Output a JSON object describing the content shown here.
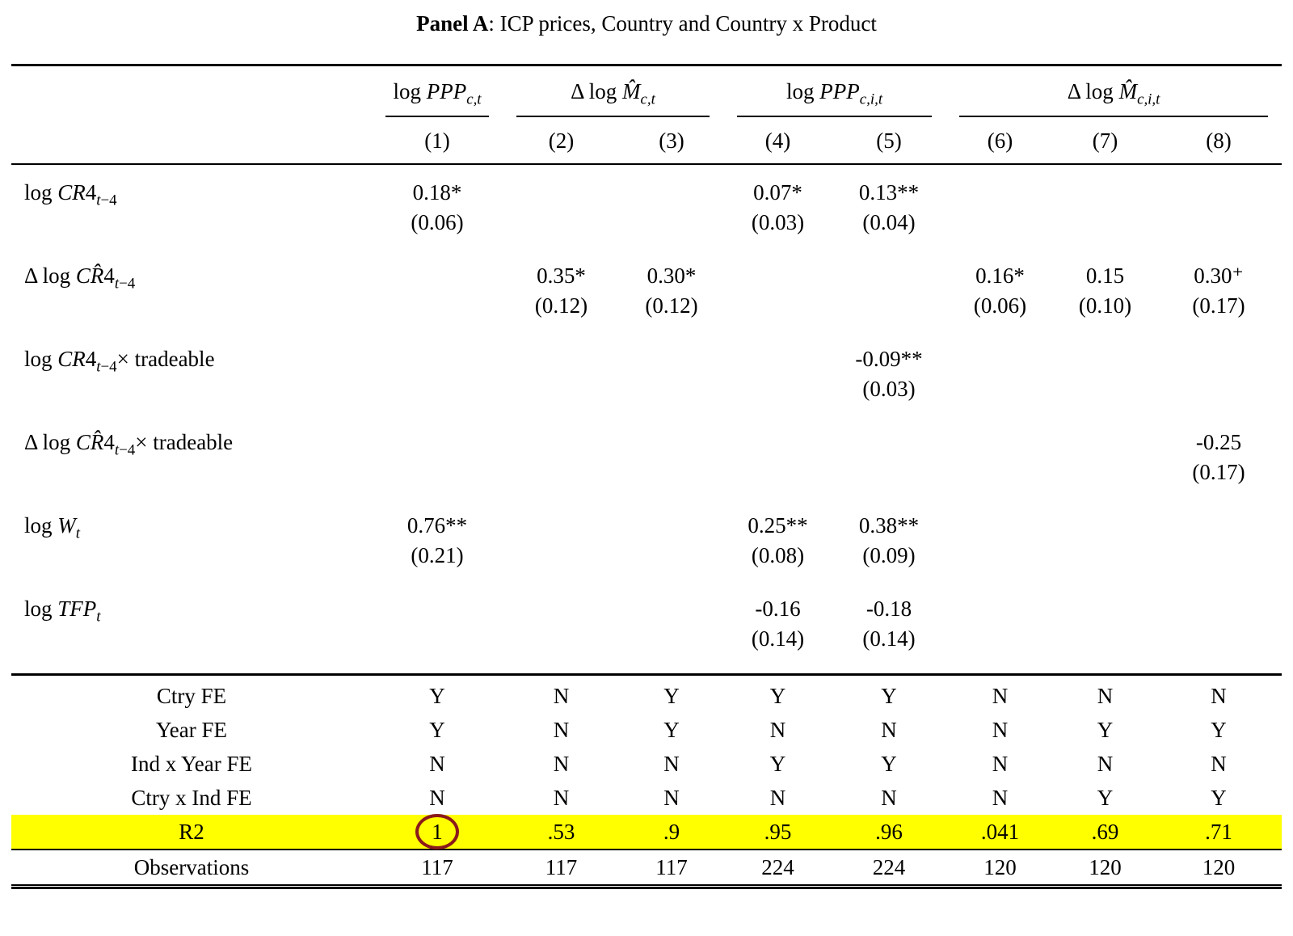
{
  "colors": {
    "r2_highlight": "#ffff00",
    "circle": "#8b1a1a"
  },
  "title": {
    "prefix": "Panel A",
    "suffix": ": ICP prices, Country and Country x Product"
  },
  "table": {
    "col_groups": [
      {
        "label_html": "log <i>PPP</i><sub><i>c,t</i></sub>",
        "span": 1
      },
      {
        "label_html": "Δ log <i>M̂</i><sub><i>c,t</i></sub>",
        "span": 2
      },
      {
        "label_html": "log <i>PPP</i><sub><i>c,i,t</i></sub>",
        "span": 2
      },
      {
        "label_html": "Δ log <i>M̂</i><sub><i>c,i,t</i></sub>",
        "span": 3
      }
    ],
    "col_numbers": [
      "(1)",
      "(2)",
      "(3)",
      "(4)",
      "(5)",
      "(6)",
      "(7)",
      "(8)"
    ],
    "coef_rows": [
      {
        "label_html": "log <i>CR</i>4<sub><i>t</i>−4</sub>",
        "cells": [
          {
            "coef": "0.18*",
            "se": "(0.06)"
          },
          null,
          null,
          {
            "coef": "0.07*",
            "se": "(0.03)"
          },
          {
            "coef": "0.13**",
            "se": "(0.04)"
          },
          null,
          null,
          null
        ]
      },
      {
        "label_html": "Δ log <i>CR̂</i>4<sub><i>t</i>−4</sub>",
        "cells": [
          null,
          {
            "coef": "0.35*",
            "se": "(0.12)"
          },
          {
            "coef": "0.30*",
            "se": "(0.12)"
          },
          null,
          null,
          {
            "coef": "0.16*",
            "se": "(0.06)"
          },
          {
            "coef": "0.15",
            "se": "(0.10)"
          },
          {
            "coef": "0.30⁺",
            "se": "(0.17)"
          }
        ]
      },
      {
        "label_html": "log <i>CR</i>4<sub><i>t</i>−4</sub>× tradeable",
        "cells": [
          null,
          null,
          null,
          null,
          {
            "coef": "-0.09**",
            "se": "(0.03)"
          },
          null,
          null,
          null
        ]
      },
      {
        "label_html": "Δ log <i>CR̂</i>4<sub><i>t</i>−4</sub>× tradeable",
        "cells": [
          null,
          null,
          null,
          null,
          null,
          null,
          null,
          {
            "coef": "-0.25",
            "se": "(0.17)"
          }
        ]
      },
      {
        "label_html": "log <i>W</i><sub><i>t</i></sub>",
        "cells": [
          {
            "coef": "0.76**",
            "se": "(0.21)"
          },
          null,
          null,
          {
            "coef": "0.25**",
            "se": "(0.08)"
          },
          {
            "coef": "0.38**",
            "se": "(0.09)"
          },
          null,
          null,
          null
        ]
      },
      {
        "label_html": "log <i>TFP</i><sub><i>t</i></sub>",
        "cells": [
          null,
          null,
          null,
          {
            "coef": "-0.16",
            "se": "(0.14)"
          },
          {
            "coef": "-0.18",
            "se": "(0.14)"
          },
          null,
          null,
          null
        ]
      }
    ],
    "fe_rows": [
      {
        "label": "Ctry FE",
        "values": [
          "Y",
          "N",
          "Y",
          "Y",
          "Y",
          "N",
          "N",
          "N"
        ]
      },
      {
        "label": "Year FE",
        "values": [
          "Y",
          "N",
          "Y",
          "N",
          "N",
          "N",
          "Y",
          "Y"
        ]
      },
      {
        "label": "Ind x Year FE",
        "values": [
          "N",
          "N",
          "N",
          "Y",
          "Y",
          "N",
          "N",
          "N"
        ]
      },
      {
        "label": "Ctry x Ind FE",
        "values": [
          "N",
          "N",
          "N",
          "N",
          "N",
          "N",
          "Y",
          "Y"
        ]
      }
    ],
    "r2_row": {
      "label": "R2",
      "values": [
        "1",
        ".53",
        ".9",
        ".95",
        ".96",
        ".041",
        ".69",
        ".71"
      ]
    },
    "obs_row": {
      "label": "Observations",
      "values": [
        "117",
        "117",
        "117",
        "224",
        "224",
        "120",
        "120",
        "120"
      ]
    }
  }
}
